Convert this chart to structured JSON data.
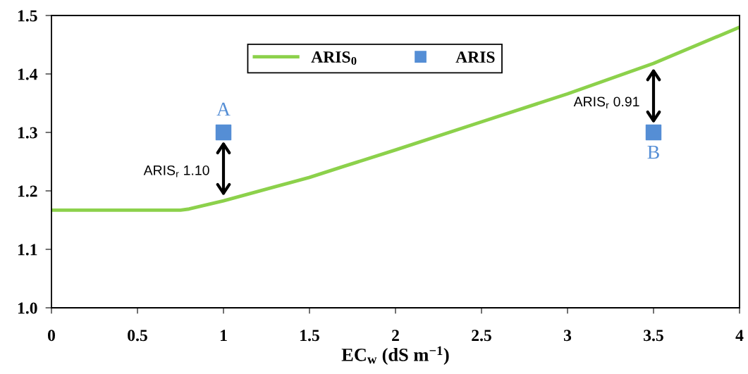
{
  "chart_data": {
    "type": "line",
    "xlabel": "EC$_{w}$ (dS m$^{−1}$)",
    "xlim": [
      0,
      4
    ],
    "xticks": [
      0,
      0.5,
      1,
      1.5,
      2,
      2.5,
      3,
      3.5,
      4
    ],
    "ylim": [
      1.0,
      1.5
    ],
    "yticks": [
      {
        "value": 1.0,
        "label": "1.0"
      },
      1.1,
      1.2,
      1.3,
      1.4,
      1.5
    ],
    "grid": false,
    "legend": "top",
    "series": [
      {
        "name": "ARIS$_{0}$",
        "color": "#8cd14b",
        "marker": "none",
        "line_style": "solid",
        "x": [
          0,
          0.75,
          0.8,
          1.0,
          1.3,
          1.5,
          1.7,
          2.0,
          2.5,
          3.0,
          3.5,
          4.0
        ],
        "values": [
          1.167,
          1.167,
          1.169,
          1.183,
          1.207,
          1.223,
          1.242,
          1.27,
          1.318,
          1.366,
          1.418,
          1.48
        ]
      },
      {
        "name": "ARIS",
        "type": "scatter",
        "color": "#558ed5",
        "marker": "square",
        "x": [
          1,
          3.5
        ],
        "values": [
          1.3,
          1.3
        ]
      }
    ],
    "annotations": [
      {
        "text": "A",
        "x": 1,
        "y": 1.3
      },
      {
        "text": "B",
        "x": 3.5,
        "y": 1.3
      },
      "ARIS$_{r}$ 1.10",
      "ARIS$_{r}$ 0.91"
    ]
  }
}
